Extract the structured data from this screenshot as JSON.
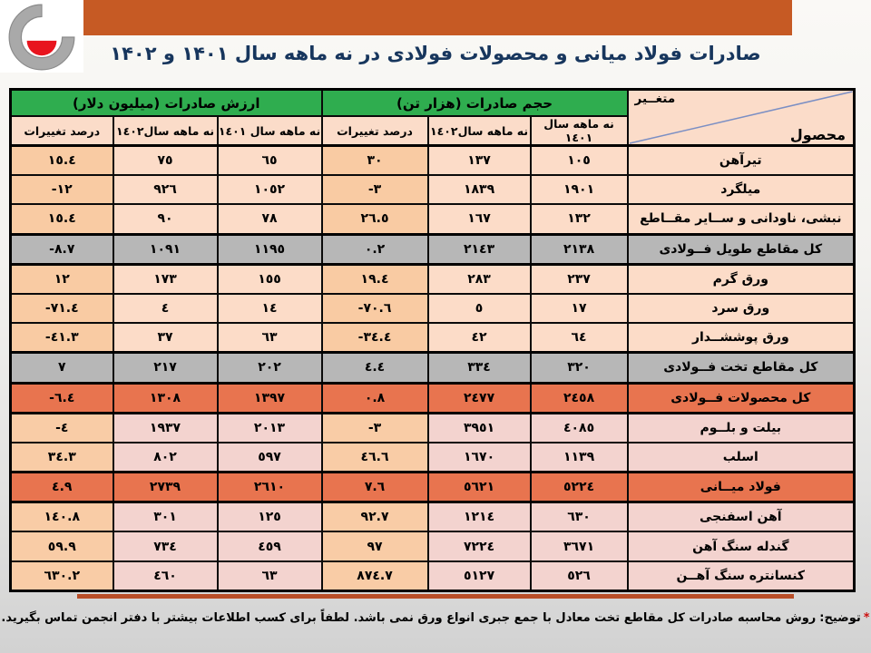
{
  "page": {
    "title": "صادرات فولاد میانی و محصولات فولادی در نه ماهه سال ۱۴۰۱ و ۱۴۰۲",
    "footnote": {
      "star": "*",
      "label": "توضیح:",
      "text": "روش محاسبه صادرات کل مقاطع تخت معادل با جمع جبری انواع ورق نمی باشد. لطفاً برای کسب اطلاعات بیشتر با دفتر انجمن تماس بگیرید."
    }
  },
  "colors": {
    "banner_orange": "#c65a24",
    "header_green": "#2fad4f",
    "row_peach": "#fcdcc8",
    "percent_col_peach": "#f9cba3",
    "row_gray": "#b7b7b7",
    "row_salmon": "#e8744f",
    "row_pink": "#f3d3cf",
    "title_navy": "#17365d",
    "underline_rust": "#b84e27",
    "logo_red": "#e8141e"
  },
  "table": {
    "corner": {
      "top_label": "متغــیر",
      "bottom_label": "محصول"
    },
    "groups": [
      {
        "label": "حجم صادرات (هزار تن)"
      },
      {
        "label": "ارزش صادرات (میلیون دلار)"
      }
    ],
    "subheaders": [
      "نه ماهه سال ١٤٠١",
      "نه ماهه سال١٤٠٢",
      "درصد تغییرات",
      "نه ماهه سال ١٤٠١",
      "نه ماهه سال١٤٠٢",
      "درصد تغییرات"
    ],
    "rows": [
      {
        "name": "تیرآهن",
        "style": "normal",
        "cells": [
          "١٠٥",
          "١٣٧",
          "٣٠",
          "٦٥",
          "٧٥",
          "١٥.٤"
        ]
      },
      {
        "name": "میلگرد",
        "style": "normal",
        "cells": [
          "١٩٠١",
          "١٨٣٩",
          "-٣",
          "١٠٥٢",
          "٩٢٦",
          "-١٢"
        ]
      },
      {
        "name": "نبشی، ناودانی و ســایر مقــاطع",
        "style": "normal",
        "cells": [
          "١٣٢",
          "١٦٧",
          "٢٦.٥",
          "٧٨",
          "٩٠",
          "١٥.٤"
        ]
      },
      {
        "name": "کل مقاطع طویل فــولادی",
        "style": "gray",
        "cells": [
          "٢١٣٨",
          "٢١٤٣",
          "٠.٢",
          "١١٩٥",
          "١٠٩١",
          "-٨.٧"
        ]
      },
      {
        "name": "ورق گرم",
        "style": "normal",
        "cells": [
          "٢٣٧",
          "٢٨٣",
          "١٩.٤",
          "١٥٥",
          "١٧٣",
          "١٢"
        ]
      },
      {
        "name": "ورق سرد",
        "style": "normal",
        "cells": [
          "١٧",
          "٥",
          "-٧٠.٦",
          "١٤",
          "٤",
          "-٧١.٤"
        ]
      },
      {
        "name": "ورق پوششــدار",
        "style": "normal",
        "cells": [
          "٦٤",
          "٤٢",
          "-٣٤.٤",
          "٦٣",
          "٣٧",
          "-٤١.٣"
        ]
      },
      {
        "name": "کل مقاطع تخت فــولادی",
        "style": "gray",
        "cells": [
          "٣٢٠",
          "٣٣٤",
          "٤.٤",
          "٢٠٢",
          "٢١٧",
          "٧"
        ]
      },
      {
        "name": "کل محصولات فــولادی",
        "style": "salmon",
        "cells": [
          "٢٤٥٨",
          "٢٤٧٧",
          "٠.٨",
          "١٣٩٧",
          "١٣٠٨",
          "-٦.٤"
        ]
      },
      {
        "name": "بیلت و بلــوم",
        "style": "pink",
        "cells": [
          "٤٠٨٥",
          "٣٩٥١",
          "-٣",
          "٢٠١٣",
          "١٩٣٧",
          "-٤"
        ]
      },
      {
        "name": "اسلب",
        "style": "pink",
        "cells": [
          "١١٣٩",
          "١٦٧٠",
          "٤٦.٦",
          "٥٩٧",
          "٨٠٢",
          "٣٤.٣"
        ]
      },
      {
        "name": "فولاد میــانی",
        "style": "salmon",
        "cells": [
          "٥٢٢٤",
          "٥٦٢١",
          "٧.٦",
          "٢٦١٠",
          "٢٧٣٩",
          "٤.٩"
        ]
      },
      {
        "name": "آهن اسفنجی",
        "style": "pink",
        "cells": [
          "٦٣٠",
          "١٢١٤",
          "٩٢.٧",
          "١٢٥",
          "٣٠١",
          "١٤٠.٨"
        ]
      },
      {
        "name": "گندله سنگ آهن",
        "style": "pink",
        "cells": [
          "٣٦٧١",
          "٧٢٢٤",
          "٩٧",
          "٤٥٩",
          "٧٣٤",
          "٥٩.٩"
        ]
      },
      {
        "name": "کنسانتره سنگ آهــن",
        "style": "pink",
        "cells": [
          "٥٢٦",
          "٥١٢٧",
          "٨٧٤.٧",
          "٦٣",
          "٤٦٠",
          "٦٣٠.٢"
        ]
      }
    ]
  }
}
